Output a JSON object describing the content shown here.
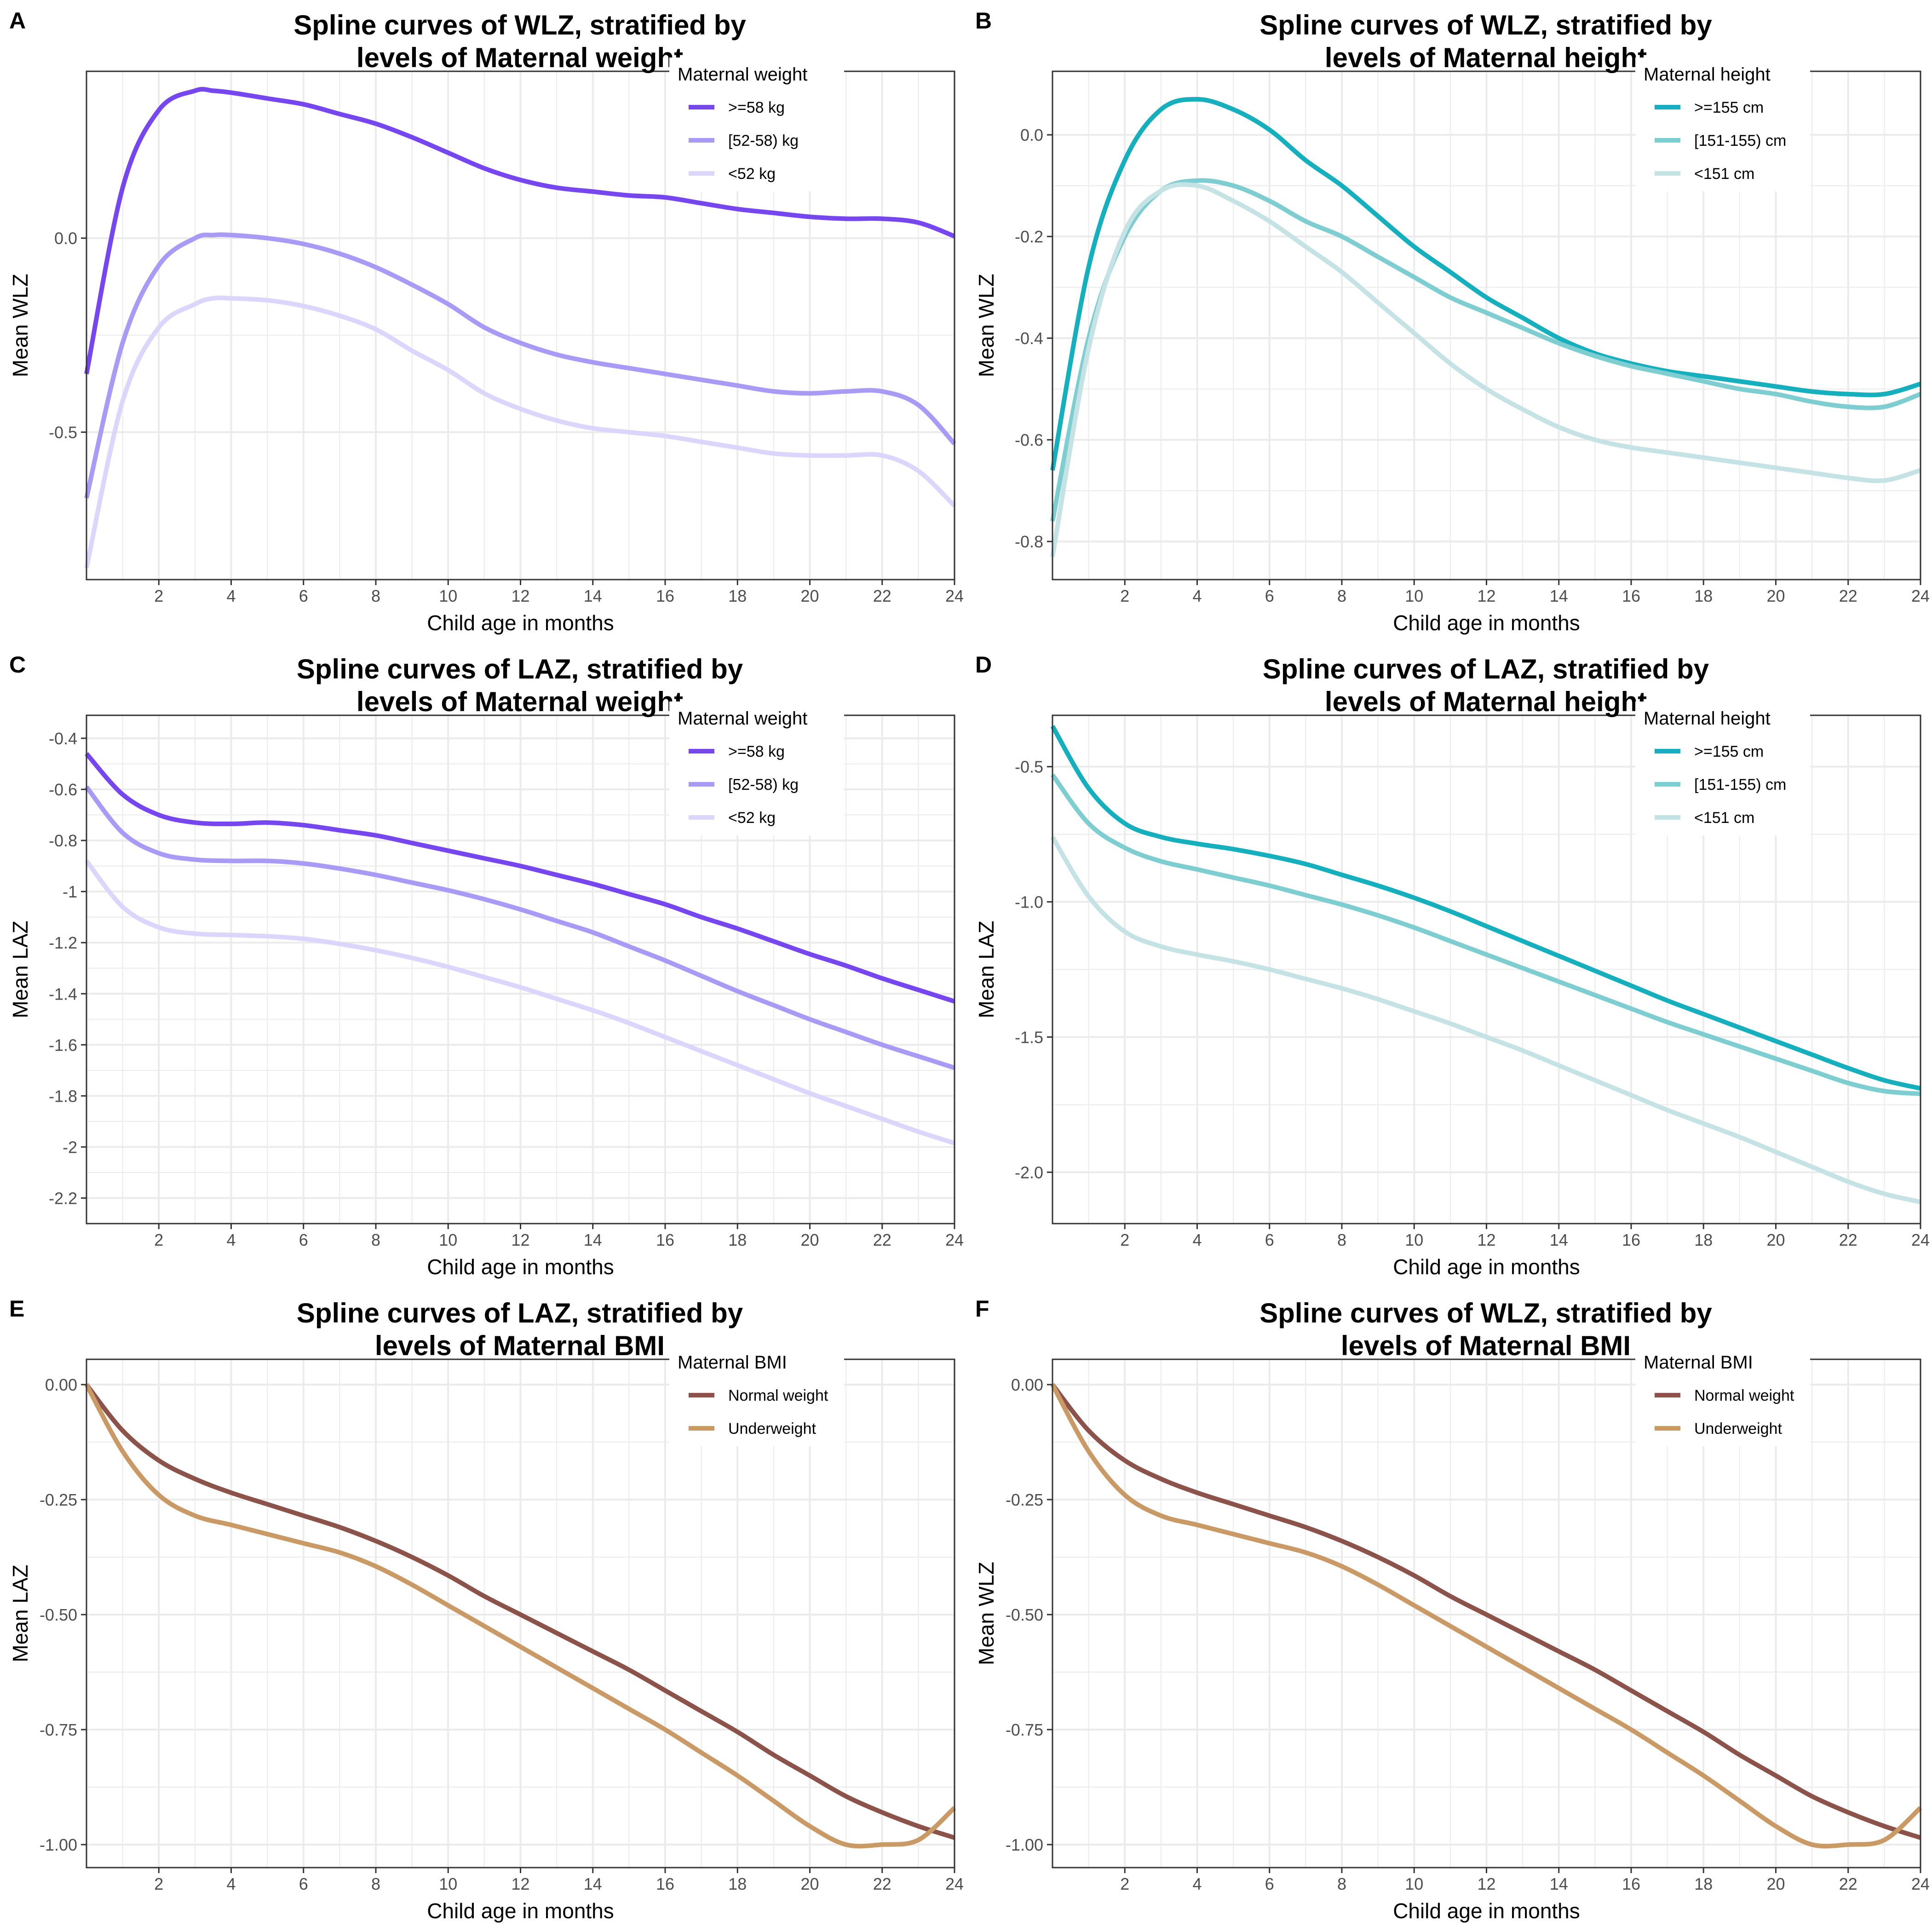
{
  "chart_data": [
    {
      "panel": "A",
      "type": "line",
      "title": [
        "Spline curves of WLZ, stratified by",
        "levels of Maternal weight"
      ],
      "xlabel": "Child age in months",
      "ylabel": "Mean WLZ",
      "xlim": [
        0,
        24
      ],
      "ylim": [
        -0.88,
        0.43
      ],
      "xticks": [
        2,
        4,
        6,
        8,
        10,
        12,
        14,
        16,
        18,
        20,
        22,
        24
      ],
      "yticks": [
        0.0,
        -0.5
      ],
      "ytick_labels": [
        "0.0",
        "-0.5"
      ],
      "grid": true,
      "legend": {
        "title": "Maternal weight",
        "position": "top-right"
      },
      "x": [
        0,
        1,
        2,
        3,
        3.5,
        4,
        5,
        6,
        7,
        8,
        9,
        10,
        11,
        12,
        13,
        14,
        15,
        16,
        17,
        18,
        19,
        20,
        21,
        22,
        23,
        24
      ],
      "series": [
        {
          "name": ">=58 kg",
          "color": "#7646EE",
          "values": [
            -0.35,
            0.13,
            0.33,
            0.38,
            0.38,
            0.375,
            0.36,
            0.345,
            0.32,
            0.295,
            0.26,
            0.22,
            0.18,
            0.15,
            0.13,
            0.12,
            0.11,
            0.105,
            0.09,
            0.075,
            0.065,
            0.055,
            0.05,
            0.05,
            0.04,
            0.005
          ]
        },
        {
          "name": "[52-58) kg",
          "color": "#A99AF6",
          "values": [
            -0.67,
            -0.27,
            -0.07,
            0.0,
            0.008,
            0.008,
            0.0,
            -0.015,
            -0.04,
            -0.075,
            -0.12,
            -0.17,
            -0.23,
            -0.27,
            -0.3,
            -0.32,
            -0.335,
            -0.35,
            -0.365,
            -0.38,
            -0.395,
            -0.4,
            -0.395,
            -0.395,
            -0.43,
            -0.53
          ]
        },
        {
          "name": "<52 kg",
          "color": "#DCD5FC",
          "values": [
            -0.85,
            -0.42,
            -0.23,
            -0.17,
            -0.155,
            -0.155,
            -0.16,
            -0.175,
            -0.2,
            -0.235,
            -0.29,
            -0.34,
            -0.4,
            -0.44,
            -0.47,
            -0.49,
            -0.5,
            -0.51,
            -0.525,
            -0.54,
            -0.555,
            -0.56,
            -0.56,
            -0.56,
            -0.6,
            -0.69
          ]
        }
      ]
    },
    {
      "panel": "B",
      "type": "line",
      "title": [
        "Spline curves of WLZ, stratified by",
        "levels of Maternal height"
      ],
      "xlabel": "Child age in months",
      "ylabel": "Mean WLZ",
      "xlim": [
        0,
        24
      ],
      "ylim": [
        -0.875,
        0.125
      ],
      "xticks": [
        2,
        4,
        6,
        8,
        10,
        12,
        14,
        16,
        18,
        20,
        22,
        24
      ],
      "yticks": [
        0.0,
        -0.2,
        -0.4,
        -0.6,
        -0.8
      ],
      "ytick_labels": [
        "0.0",
        "-0.2",
        "-0.4",
        "-0.6",
        "-0.8"
      ],
      "grid": true,
      "legend": {
        "title": "Maternal height",
        "position": "top-right"
      },
      "x": [
        0,
        1,
        2,
        3,
        4,
        5,
        6,
        7,
        8,
        9,
        10,
        11,
        12,
        13,
        14,
        15,
        16,
        17,
        18,
        19,
        20,
        21,
        22,
        23,
        24
      ],
      "series": [
        {
          "name": ">=155 cm",
          "color": "#16AFBD",
          "values": [
            -0.66,
            -0.26,
            -0.05,
            0.05,
            0.07,
            0.05,
            0.01,
            -0.05,
            -0.1,
            -0.16,
            -0.22,
            -0.27,
            -0.32,
            -0.36,
            -0.4,
            -0.43,
            -0.45,
            -0.465,
            -0.475,
            -0.485,
            -0.495,
            -0.505,
            -0.51,
            -0.51,
            -0.49
          ]
        },
        {
          "name": "[151-155) cm",
          "color": "#7ECDD1",
          "values": [
            -0.76,
            -0.4,
            -0.2,
            -0.11,
            -0.09,
            -0.1,
            -0.13,
            -0.17,
            -0.2,
            -0.24,
            -0.28,
            -0.32,
            -0.35,
            -0.38,
            -0.41,
            -0.435,
            -0.455,
            -0.47,
            -0.485,
            -0.5,
            -0.51,
            -0.525,
            -0.535,
            -0.535,
            -0.51
          ]
        },
        {
          "name": "<151 cm",
          "color": "#C5E2E4",
          "values": [
            -0.83,
            -0.42,
            -0.19,
            -0.11,
            -0.1,
            -0.13,
            -0.17,
            -0.22,
            -0.27,
            -0.33,
            -0.39,
            -0.45,
            -0.5,
            -0.54,
            -0.575,
            -0.6,
            -0.615,
            -0.625,
            -0.635,
            -0.645,
            -0.655,
            -0.665,
            -0.675,
            -0.68,
            -0.66
          ]
        }
      ]
    },
    {
      "panel": "C",
      "type": "line",
      "title": [
        "Spline curves of LAZ, stratified by",
        "levels of Maternal weight"
      ],
      "xlabel": "Child age in months",
      "ylabel": "Mean LAZ",
      "xlim": [
        0,
        24
      ],
      "ylim": [
        -2.3,
        -0.31
      ],
      "xticks": [
        2,
        4,
        6,
        8,
        10,
        12,
        14,
        16,
        18,
        20,
        22,
        24
      ],
      "yticks": [
        -0.4,
        -0.6,
        -0.8,
        -1,
        -1.2,
        -1.4,
        -1.6,
        -1.8,
        -2,
        -2.2
      ],
      "ytick_labels": [
        "-0.4",
        "-0.6",
        "-0.8",
        "-1",
        "-1.2",
        "-1.4",
        "-1.6",
        "-1.8",
        "-2",
        "-2.2"
      ],
      "grid": true,
      "legend": {
        "title": "Maternal weight",
        "position": "top-right"
      },
      "x": [
        0,
        1,
        2,
        3,
        4,
        5,
        6,
        7,
        8,
        9,
        10,
        11,
        12,
        13,
        14,
        15,
        16,
        17,
        18,
        19,
        20,
        21,
        22,
        23,
        24
      ],
      "series": [
        {
          "name": ">=58 kg",
          "color": "#7646EE",
          "values": [
            -0.46,
            -0.62,
            -0.7,
            -0.73,
            -0.735,
            -0.73,
            -0.74,
            -0.76,
            -0.78,
            -0.81,
            -0.84,
            -0.87,
            -0.9,
            -0.935,
            -0.97,
            -1.01,
            -1.05,
            -1.1,
            -1.145,
            -1.195,
            -1.245,
            -1.29,
            -1.34,
            -1.385,
            -1.43
          ]
        },
        {
          "name": "[52-58) kg",
          "color": "#A99AF6",
          "values": [
            -0.59,
            -0.77,
            -0.85,
            -0.875,
            -0.88,
            -0.88,
            -0.89,
            -0.91,
            -0.935,
            -0.965,
            -0.995,
            -1.03,
            -1.07,
            -1.115,
            -1.16,
            -1.215,
            -1.27,
            -1.33,
            -1.39,
            -1.445,
            -1.5,
            -1.55,
            -1.6,
            -1.645,
            -1.69
          ]
        },
        {
          "name": "<52 kg",
          "color": "#DCD5FC",
          "values": [
            -0.88,
            -1.06,
            -1.14,
            -1.165,
            -1.17,
            -1.175,
            -1.185,
            -1.205,
            -1.23,
            -1.26,
            -1.295,
            -1.335,
            -1.375,
            -1.42,
            -1.465,
            -1.515,
            -1.57,
            -1.625,
            -1.68,
            -1.735,
            -1.79,
            -1.84,
            -1.89,
            -1.94,
            -1.985
          ]
        }
      ]
    },
    {
      "panel": "D",
      "type": "line",
      "title": [
        "Spline curves of LAZ, stratified by",
        "levels of Maternal height"
      ],
      "xlabel": "Child age in months",
      "ylabel": "Mean LAZ",
      "xlim": [
        0,
        24
      ],
      "ylim": [
        -2.19,
        -0.31
      ],
      "xticks": [
        2,
        4,
        6,
        8,
        10,
        12,
        14,
        16,
        18,
        20,
        22,
        24
      ],
      "yticks": [
        -0.5,
        -1.0,
        -1.5,
        -2.0
      ],
      "ytick_labels": [
        "-0.5",
        "-1.0",
        "-1.5",
        "-2.0"
      ],
      "grid": true,
      "legend": {
        "title": "Maternal height",
        "position": "top-right"
      },
      "x": [
        0,
        1,
        2,
        3,
        4,
        5,
        6,
        7,
        8,
        9,
        10,
        11,
        12,
        13,
        14,
        15,
        16,
        17,
        18,
        19,
        20,
        21,
        22,
        23,
        24
      ],
      "series": [
        {
          "name": ">=155 cm",
          "color": "#16AFBD",
          "values": [
            -0.35,
            -0.58,
            -0.71,
            -0.76,
            -0.785,
            -0.805,
            -0.83,
            -0.86,
            -0.9,
            -0.94,
            -0.985,
            -1.035,
            -1.09,
            -1.145,
            -1.2,
            -1.255,
            -1.31,
            -1.365,
            -1.415,
            -1.465,
            -1.515,
            -1.565,
            -1.615,
            -1.66,
            -1.69
          ]
        },
        {
          "name": "[151-155) cm",
          "color": "#7ECDD1",
          "values": [
            -0.53,
            -0.71,
            -0.8,
            -0.85,
            -0.88,
            -0.91,
            -0.94,
            -0.975,
            -1.01,
            -1.05,
            -1.095,
            -1.145,
            -1.195,
            -1.245,
            -1.295,
            -1.345,
            -1.395,
            -1.445,
            -1.49,
            -1.535,
            -1.58,
            -1.625,
            -1.67,
            -1.7,
            -1.71
          ]
        },
        {
          "name": "<151 cm",
          "color": "#C5E2E4",
          "values": [
            -0.76,
            -0.98,
            -1.11,
            -1.165,
            -1.195,
            -1.22,
            -1.25,
            -1.285,
            -1.32,
            -1.36,
            -1.405,
            -1.45,
            -1.5,
            -1.55,
            -1.605,
            -1.66,
            -1.715,
            -1.77,
            -1.82,
            -1.87,
            -1.925,
            -1.98,
            -2.035,
            -2.08,
            -2.11
          ]
        }
      ]
    },
    {
      "panel": "E",
      "type": "line",
      "title": [
        "Spline curves of LAZ, stratified by",
        "levels of Maternal BMI"
      ],
      "xlabel": "Child age in months",
      "ylabel": "Mean LAZ",
      "xlim": [
        0,
        24
      ],
      "ylim": [
        -1.05,
        0.055
      ],
      "xticks": [
        2,
        4,
        6,
        8,
        10,
        12,
        14,
        16,
        18,
        20,
        22,
        24
      ],
      "yticks": [
        0.0,
        -0.25,
        -0.5,
        -0.75,
        -1.0
      ],
      "ytick_labels": [
        "0.00",
        "-0.25",
        "-0.50",
        "-0.75",
        "-1.00"
      ],
      "grid": true,
      "legend": {
        "title": "Maternal BMI",
        "position": "top-right"
      },
      "x": [
        0,
        1,
        2,
        3,
        4,
        5,
        6,
        7,
        8,
        9,
        10,
        11,
        12,
        13,
        14,
        15,
        16,
        17,
        18,
        19,
        20,
        21,
        22,
        23,
        24
      ],
      "series": [
        {
          "name": "Normal weight",
          "color": "#8B5349",
          "values": [
            0.0,
            -0.1,
            -0.165,
            -0.205,
            -0.235,
            -0.26,
            -0.285,
            -0.31,
            -0.34,
            -0.375,
            -0.415,
            -0.46,
            -0.5,
            -0.54,
            -0.58,
            -0.62,
            -0.665,
            -0.71,
            -0.755,
            -0.805,
            -0.85,
            -0.895,
            -0.93,
            -0.96,
            -0.985
          ]
        },
        {
          "name": "Underweight",
          "color": "#C99A65",
          "values": [
            0.0,
            -0.145,
            -0.24,
            -0.285,
            -0.305,
            -0.325,
            -0.345,
            -0.365,
            -0.395,
            -0.435,
            -0.48,
            -0.525,
            -0.57,
            -0.615,
            -0.66,
            -0.705,
            -0.75,
            -0.8,
            -0.85,
            -0.905,
            -0.96,
            -1.0,
            -1.0,
            -0.99,
            -0.92
          ]
        }
      ]
    },
    {
      "panel": "F",
      "type": "line",
      "title": [
        "Spline curves of WLZ, stratified by",
        "levels of Maternal BMI"
      ],
      "xlabel": "Child age in months",
      "ylabel": "Mean WLZ",
      "xlim": [
        0,
        24
      ],
      "ylim": [
        -1.05,
        0.055
      ],
      "xticks": [
        2,
        4,
        6,
        8,
        10,
        12,
        14,
        16,
        18,
        20,
        22,
        24
      ],
      "yticks": [
        0.0,
        -0.25,
        -0.5,
        -0.75,
        -1.0
      ],
      "ytick_labels": [
        "0.00",
        "-0.25",
        "-0.50",
        "-0.75",
        "-1.00"
      ],
      "grid": true,
      "legend": {
        "title": "Maternal BMI",
        "position": "top-right"
      },
      "x": [
        0,
        1,
        2,
        3,
        4,
        5,
        6,
        7,
        8,
        9,
        10,
        11,
        12,
        13,
        14,
        15,
        16,
        17,
        18,
        19,
        20,
        21,
        22,
        23,
        24
      ],
      "series": [
        {
          "name": "Normal weight",
          "color": "#8B5349",
          "values": [
            0.0,
            -0.1,
            -0.165,
            -0.205,
            -0.235,
            -0.26,
            -0.285,
            -0.31,
            -0.34,
            -0.375,
            -0.415,
            -0.46,
            -0.5,
            -0.54,
            -0.58,
            -0.62,
            -0.665,
            -0.71,
            -0.755,
            -0.805,
            -0.85,
            -0.895,
            -0.93,
            -0.96,
            -0.985
          ]
        },
        {
          "name": "Underweight",
          "color": "#C99A65",
          "values": [
            0.0,
            -0.145,
            -0.24,
            -0.285,
            -0.305,
            -0.325,
            -0.345,
            -0.365,
            -0.395,
            -0.435,
            -0.48,
            -0.525,
            -0.57,
            -0.615,
            -0.66,
            -0.705,
            -0.75,
            -0.8,
            -0.85,
            -0.905,
            -0.96,
            -1.0,
            -1.0,
            -0.99,
            -0.92
          ]
        }
      ]
    }
  ]
}
